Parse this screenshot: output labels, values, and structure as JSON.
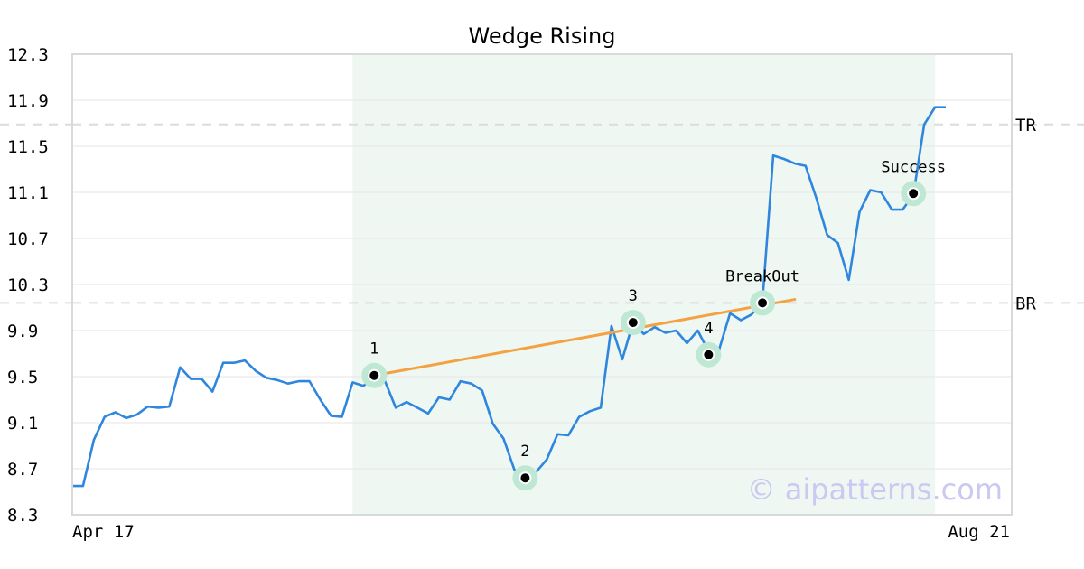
{
  "chart_data": {
    "type": "line",
    "title": "Wedge Rising",
    "xlabel": "",
    "ylabel": "",
    "ylim": [
      8.3,
      12.3
    ],
    "y_ticks": [
      "12.3",
      "11.9",
      "11.5",
      "11.1",
      "10.7",
      "10.3",
      "9.9",
      "9.5",
      "9.1",
      "8.7",
      "8.3"
    ],
    "x_tick_labels": [
      "Apr 17",
      "Aug 21"
    ],
    "grid": true,
    "series": [
      {
        "color": "#2e86de",
        "values": [
          8.55,
          8.55,
          8.95,
          9.15,
          9.19,
          9.14,
          9.17,
          9.24,
          9.23,
          9.24,
          9.58,
          9.48,
          9.48,
          9.37,
          9.62,
          9.62,
          9.64,
          9.55,
          9.49,
          9.47,
          9.44,
          9.46,
          9.46,
          9.3,
          9.16,
          9.15,
          9.45,
          9.42,
          9.49,
          9.46,
          9.23,
          9.28,
          9.23,
          9.18,
          9.32,
          9.3,
          9.46,
          9.44,
          9.38,
          9.09,
          8.96,
          8.69,
          8.62,
          8.67,
          8.78,
          9.0,
          8.99,
          9.15,
          9.2,
          9.23,
          9.94,
          9.65,
          9.97,
          9.87,
          9.93,
          9.88,
          9.9,
          9.79,
          9.9,
          9.72,
          9.74,
          10.05,
          9.99,
          10.04,
          10.15,
          11.42,
          11.39,
          11.35,
          11.33,
          11.05,
          10.73,
          10.66,
          10.34,
          10.93,
          11.12,
          11.1,
          10.95,
          10.95,
          11.08,
          11.69,
          11.84,
          11.84
        ]
      }
    ],
    "pattern_line": {
      "color": "#f4a142",
      "from": {
        "x": 28,
        "y": 9.51
      },
      "to": {
        "x": 67,
        "y": 10.17
      }
    },
    "reference_lines": [
      {
        "label": "TR",
        "y": 11.69
      },
      {
        "label": "BR",
        "y": 10.14
      }
    ],
    "shaded_region": {
      "x_start": 26,
      "x_end": 80,
      "color": "#eef7f2"
    },
    "points": [
      {
        "label": "1",
        "x": 28,
        "y": 9.51
      },
      {
        "label": "2",
        "x": 42,
        "y": 8.62
      },
      {
        "label": "3",
        "x": 52,
        "y": 9.97
      },
      {
        "label": "4",
        "x": 59,
        "y": 9.69
      },
      {
        "label": "BreakOut",
        "x": 64,
        "y": 10.14
      },
      {
        "label": "Success",
        "x": 78,
        "y": 11.09
      }
    ],
    "watermark": "© aipatterns.com"
  }
}
